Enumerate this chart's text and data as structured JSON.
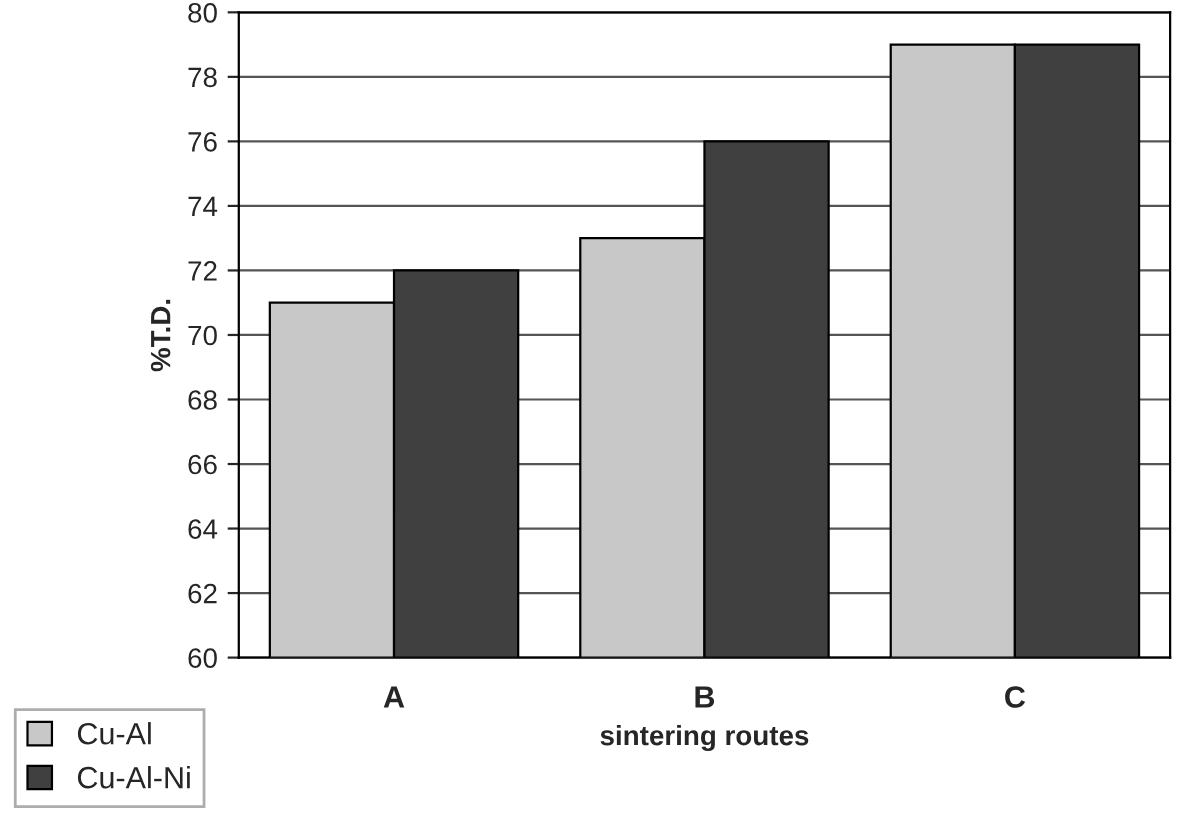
{
  "chart_data": {
    "type": "bar",
    "xlabel": "sintering routes",
    "ylabel": "%T.D.",
    "categories": [
      "A",
      "B",
      "C"
    ],
    "series": [
      {
        "name": "Cu-Al",
        "color": "#c8c8c8",
        "values": [
          71,
          73,
          79
        ]
      },
      {
        "name": "Cu-Al-Ni",
        "color": "#404040",
        "values": [
          72,
          76,
          79
        ]
      }
    ],
    "ylim": [
      60,
      80
    ],
    "yticks": [
      60,
      62,
      64,
      66,
      68,
      70,
      72,
      74,
      76,
      78,
      80
    ],
    "grid": "y",
    "legend": "bottom left"
  }
}
